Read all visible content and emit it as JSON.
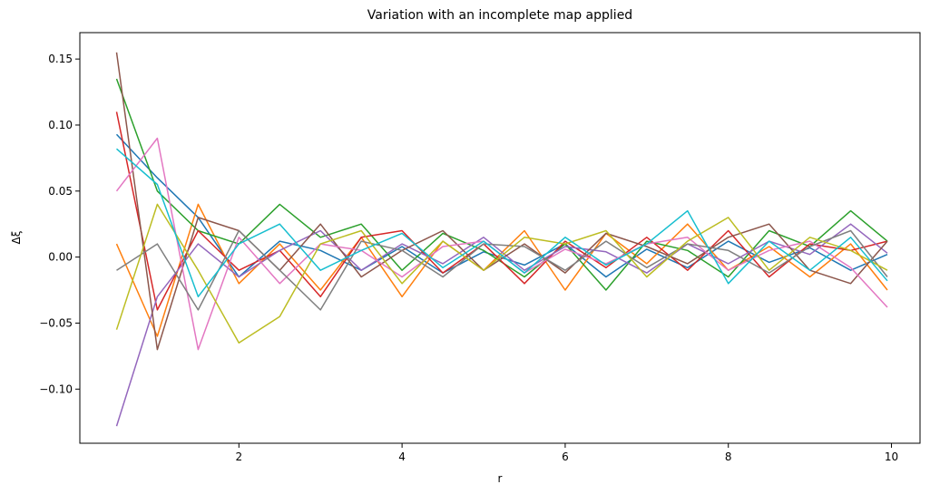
{
  "chart_data": {
    "type": "line",
    "title": "Variation with an incomplete map applied",
    "xlabel": "r",
    "ylabel": "Δξ",
    "xlim": [
      0.05,
      10.35
    ],
    "ylim": [
      -0.141,
      0.17
    ],
    "x_ticks": [
      2,
      4,
      6,
      8,
      10
    ],
    "y_ticks": [
      -0.1,
      -0.05,
      0.0,
      0.05,
      0.1,
      0.15
    ],
    "x_tick_labels": [
      "2",
      "4",
      "6",
      "8",
      "10"
    ],
    "y_tick_labels": [
      "−0.10",
      "−0.05",
      "0.00",
      "0.05",
      "0.10",
      "0.15"
    ],
    "grid": false,
    "legend": "none",
    "x": [
      0.5,
      1.0,
      1.5,
      2.0,
      2.5,
      3.0,
      3.5,
      4.0,
      4.5,
      5.0,
      5.5,
      6.0,
      6.5,
      7.0,
      7.5,
      8.0,
      8.5,
      9.0,
      9.5,
      9.95
    ],
    "series": [
      {
        "color": "#1f77b4",
        "values": [
          0.093,
          0.06,
          0.03,
          -0.015,
          0.012,
          0.005,
          -0.01,
          0.008,
          -0.012,
          0.004,
          -0.006,
          0.01,
          -0.015,
          0.006,
          -0.008,
          0.012,
          -0.004,
          0.007,
          -0.01,
          0.002
        ]
      },
      {
        "color": "#ff7f0e",
        "values": [
          0.01,
          -0.06,
          0.04,
          -0.02,
          0.01,
          -0.025,
          0.015,
          -0.03,
          0.012,
          -0.01,
          0.02,
          -0.025,
          0.018,
          -0.005,
          0.025,
          -0.01,
          0.008,
          -0.015,
          0.01,
          -0.025
        ]
      },
      {
        "color": "#2ca02c",
        "values": [
          0.135,
          0.05,
          0.02,
          0.01,
          0.04,
          0.015,
          0.025,
          -0.01,
          0.018,
          0.005,
          -0.015,
          0.01,
          -0.025,
          0.012,
          0.005,
          -0.015,
          0.02,
          0.008,
          0.035,
          0.012
        ]
      },
      {
        "color": "#d62728",
        "values": [
          0.11,
          -0.04,
          0.02,
          -0.01,
          0.005,
          -0.03,
          0.015,
          0.02,
          -0.012,
          0.01,
          -0.02,
          0.012,
          -0.008,
          0.015,
          -0.01,
          0.02,
          -0.015,
          0.01,
          0.005,
          0.012
        ]
      },
      {
        "color": "#9467bd",
        "values": [
          -0.128,
          -0.03,
          0.01,
          -0.015,
          0.005,
          0.02,
          -0.01,
          0.01,
          -0.005,
          0.015,
          -0.01,
          0.008,
          0.004,
          -0.012,
          0.01,
          -0.005,
          0.012,
          0.002,
          0.025,
          0.003
        ]
      },
      {
        "color": "#8c564b",
        "values": [
          0.155,
          -0.07,
          0.03,
          0.02,
          -0.01,
          0.025,
          -0.015,
          0.005,
          0.02,
          -0.01,
          0.01,
          -0.012,
          0.018,
          0.008,
          -0.005,
          0.015,
          0.025,
          -0.01,
          -0.02,
          0.012
        ]
      },
      {
        "color": "#e377c2",
        "values": [
          0.05,
          0.09,
          -0.07,
          0.015,
          -0.02,
          0.01,
          0.005,
          -0.015,
          0.008,
          0.012,
          -0.012,
          0.006,
          -0.005,
          0.01,
          0.015,
          -0.01,
          0.005,
          0.012,
          -0.008,
          -0.038
        ]
      },
      {
        "color": "#7f7f7f",
        "values": [
          -0.01,
          0.01,
          -0.04,
          0.02,
          -0.01,
          -0.04,
          0.012,
          0.005,
          -0.015,
          0.01,
          0.008,
          -0.01,
          0.012,
          -0.008,
          0.01,
          0.005,
          -0.012,
          0.008,
          0.02,
          -0.015
        ]
      },
      {
        "color": "#bcbd22",
        "values": [
          -0.055,
          0.04,
          -0.01,
          -0.065,
          -0.045,
          0.01,
          0.02,
          -0.02,
          0.012,
          -0.01,
          0.015,
          0.01,
          0.02,
          -0.015,
          0.012,
          0.03,
          -0.01,
          0.015,
          0.005,
          -0.01
        ]
      },
      {
        "color": "#17becf",
        "values": [
          0.082,
          0.055,
          -0.03,
          0.01,
          0.025,
          -0.01,
          0.005,
          0.018,
          -0.008,
          0.012,
          -0.012,
          0.015,
          -0.006,
          0.01,
          0.035,
          -0.02,
          0.012,
          -0.01,
          0.015,
          -0.018
        ]
      }
    ]
  }
}
